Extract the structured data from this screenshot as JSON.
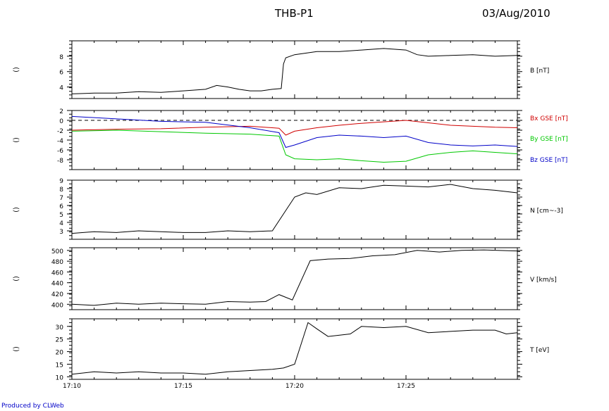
{
  "header": {
    "title": "THB-P1",
    "date": "03/Aug/2010"
  },
  "footer": {
    "credit": "Produced by CLWeb"
  },
  "chart_data": [
    {
      "type": "line",
      "ylabel": "B [nT]",
      "ylim": [
        2.5,
        10
      ],
      "yticks": [
        4,
        6,
        8
      ],
      "xlim": [
        0,
        20
      ],
      "series": [
        {
          "color": "#000000",
          "points": [
            [
              0,
              3.1
            ],
            [
              1,
              3.2
            ],
            [
              2,
              3.2
            ],
            [
              3,
              3.4
            ],
            [
              4,
              3.3
            ],
            [
              5,
              3.5
            ],
            [
              6,
              3.7
            ],
            [
              6.5,
              4.2
            ],
            [
              7,
              4.0
            ],
            [
              7.5,
              3.7
            ],
            [
              8,
              3.5
            ],
            [
              8.5,
              3.5
            ],
            [
              9,
              3.7
            ],
            [
              9.4,
              3.8
            ],
            [
              9.5,
              7.0
            ],
            [
              9.6,
              7.8
            ],
            [
              10,
              8.2
            ],
            [
              11,
              8.6
            ],
            [
              12,
              8.6
            ],
            [
              13,
              8.8
            ],
            [
              14,
              9.0
            ],
            [
              15,
              8.8
            ],
            [
              15.5,
              8.2
            ],
            [
              16,
              8.0
            ],
            [
              17,
              8.1
            ],
            [
              18,
              8.2
            ],
            [
              19,
              8.0
            ],
            [
              20,
              8.1
            ]
          ]
        }
      ]
    },
    {
      "type": "line",
      "ylim": [
        -10,
        2
      ],
      "yticks": [
        2,
        0,
        -2,
        -4,
        -6,
        -8
      ],
      "zero_line": true,
      "xlim": [
        0,
        20
      ],
      "series": [
        {
          "name": "Bx GSE [nT]",
          "color": "#d00000",
          "points": [
            [
              0,
              -2.0
            ],
            [
              2,
              -1.8
            ],
            [
              4,
              -1.7
            ],
            [
              6,
              -1.4
            ],
            [
              8,
              -1.2
            ],
            [
              9.3,
              -1.6
            ],
            [
              9.6,
              -3.0
            ],
            [
              10,
              -2.2
            ],
            [
              11,
              -1.5
            ],
            [
              12,
              -1.0
            ],
            [
              13,
              -0.6
            ],
            [
              14,
              -0.3
            ],
            [
              15,
              0.0
            ],
            [
              16,
              -0.5
            ],
            [
              17,
              -1.0
            ],
            [
              18,
              -1.2
            ],
            [
              19,
              -1.4
            ],
            [
              20,
              -1.5
            ]
          ]
        },
        {
          "name": "By GSE [nT]",
          "color": "#00c800",
          "points": [
            [
              0,
              -2.2
            ],
            [
              2,
              -2.0
            ],
            [
              4,
              -2.3
            ],
            [
              6,
              -2.6
            ],
            [
              8,
              -2.8
            ],
            [
              9.3,
              -3.2
            ],
            [
              9.6,
              -7.0
            ],
            [
              10,
              -7.8
            ],
            [
              11,
              -8.0
            ],
            [
              12,
              -7.8
            ],
            [
              13,
              -8.2
            ],
            [
              14,
              -8.5
            ],
            [
              15,
              -8.3
            ],
            [
              16,
              -7.0
            ],
            [
              17,
              -6.5
            ],
            [
              18,
              -6.2
            ],
            [
              19,
              -6.5
            ],
            [
              20,
              -6.8
            ]
          ]
        },
        {
          "name": "Bz GSE [nT]",
          "color": "#0000c8",
          "points": [
            [
              0,
              0.8
            ],
            [
              2,
              0.3
            ],
            [
              4,
              -0.2
            ],
            [
              6,
              -0.4
            ],
            [
              8,
              -1.5
            ],
            [
              9.3,
              -2.5
            ],
            [
              9.6,
              -5.5
            ],
            [
              10,
              -5.0
            ],
            [
              11,
              -3.5
            ],
            [
              12,
              -3.0
            ],
            [
              13,
              -3.2
            ],
            [
              14,
              -3.5
            ],
            [
              15,
              -3.2
            ],
            [
              16,
              -4.5
            ],
            [
              17,
              -5.0
            ],
            [
              18,
              -5.2
            ],
            [
              19,
              -5.0
            ],
            [
              20,
              -5.3
            ]
          ]
        }
      ]
    },
    {
      "type": "line",
      "ylabel": "N [cm~-3]",
      "ylim": [
        2,
        9
      ],
      "yticks": [
        3,
        4,
        5,
        6,
        7,
        8,
        9
      ],
      "xlim": [
        0,
        20
      ],
      "series": [
        {
          "color": "#000000",
          "points": [
            [
              0,
              2.7
            ],
            [
              1,
              2.9
            ],
            [
              2,
              2.8
            ],
            [
              3,
              3.0
            ],
            [
              4,
              2.9
            ],
            [
              5,
              2.8
            ],
            [
              6,
              2.8
            ],
            [
              7,
              3.0
            ],
            [
              8,
              2.9
            ],
            [
              9,
              3.0
            ],
            [
              10,
              7.0
            ],
            [
              10.5,
              7.5
            ],
            [
              11,
              7.3
            ],
            [
              12,
              8.1
            ],
            [
              13,
              8.0
            ],
            [
              14,
              8.4
            ],
            [
              15,
              8.3
            ],
            [
              16,
              8.2
            ],
            [
              17,
              8.5
            ],
            [
              18,
              8.0
            ],
            [
              19,
              7.8
            ],
            [
              20,
              7.5
            ]
          ]
        }
      ]
    },
    {
      "type": "line",
      "ylabel": "V [km/s]",
      "ylim": [
        390,
        505
      ],
      "yticks": [
        400,
        420,
        440,
        460,
        480,
        500
      ],
      "xlim": [
        0,
        20
      ],
      "series": [
        {
          "color": "#000000",
          "points": [
            [
              0,
              400
            ],
            [
              1,
              398
            ],
            [
              2,
              402
            ],
            [
              3,
              400
            ],
            [
              4,
              402
            ],
            [
              5,
              401
            ],
            [
              6,
              400
            ],
            [
              7,
              405
            ],
            [
              8,
              404
            ],
            [
              8.7,
              405
            ],
            [
              9.3,
              418
            ],
            [
              9.9,
              408
            ],
            [
              10.7,
              481
            ],
            [
              11.5,
              484
            ],
            [
              12.5,
              485
            ],
            [
              13.5,
              490
            ],
            [
              14.5,
              492
            ],
            [
              15.5,
              500
            ],
            [
              16.5,
              497
            ],
            [
              17.5,
              500
            ],
            [
              18.5,
              501
            ],
            [
              20,
              499
            ]
          ]
        }
      ]
    },
    {
      "type": "line",
      "ylabel": "T [eV]",
      "ylim": [
        9,
        33
      ],
      "yticks": [
        10,
        15,
        20,
        25,
        30
      ],
      "xlim": [
        0,
        20
      ],
      "xticks": [
        "17:10",
        "17:15",
        "17:20",
        "17:25"
      ],
      "series": [
        {
          "color": "#000000",
          "points": [
            [
              0,
              11
            ],
            [
              1,
              12
            ],
            [
              2,
              11.5
            ],
            [
              3,
              12
            ],
            [
              4,
              11.5
            ],
            [
              5,
              11.5
            ],
            [
              6,
              11
            ],
            [
              7,
              12
            ],
            [
              8,
              12.5
            ],
            [
              9,
              13
            ],
            [
              9.5,
              13.5
            ],
            [
              10,
              15
            ],
            [
              10.6,
              31.5
            ],
            [
              11,
              29
            ],
            [
              11.5,
              26
            ],
            [
              12.5,
              27
            ],
            [
              13,
              30
            ],
            [
              14,
              29.5
            ],
            [
              15,
              30
            ],
            [
              16,
              27.5
            ],
            [
              17,
              28
            ],
            [
              18,
              28.5
            ],
            [
              19,
              28.5
            ],
            [
              19.5,
              27
            ],
            [
              20,
              27.5
            ]
          ]
        }
      ]
    }
  ]
}
